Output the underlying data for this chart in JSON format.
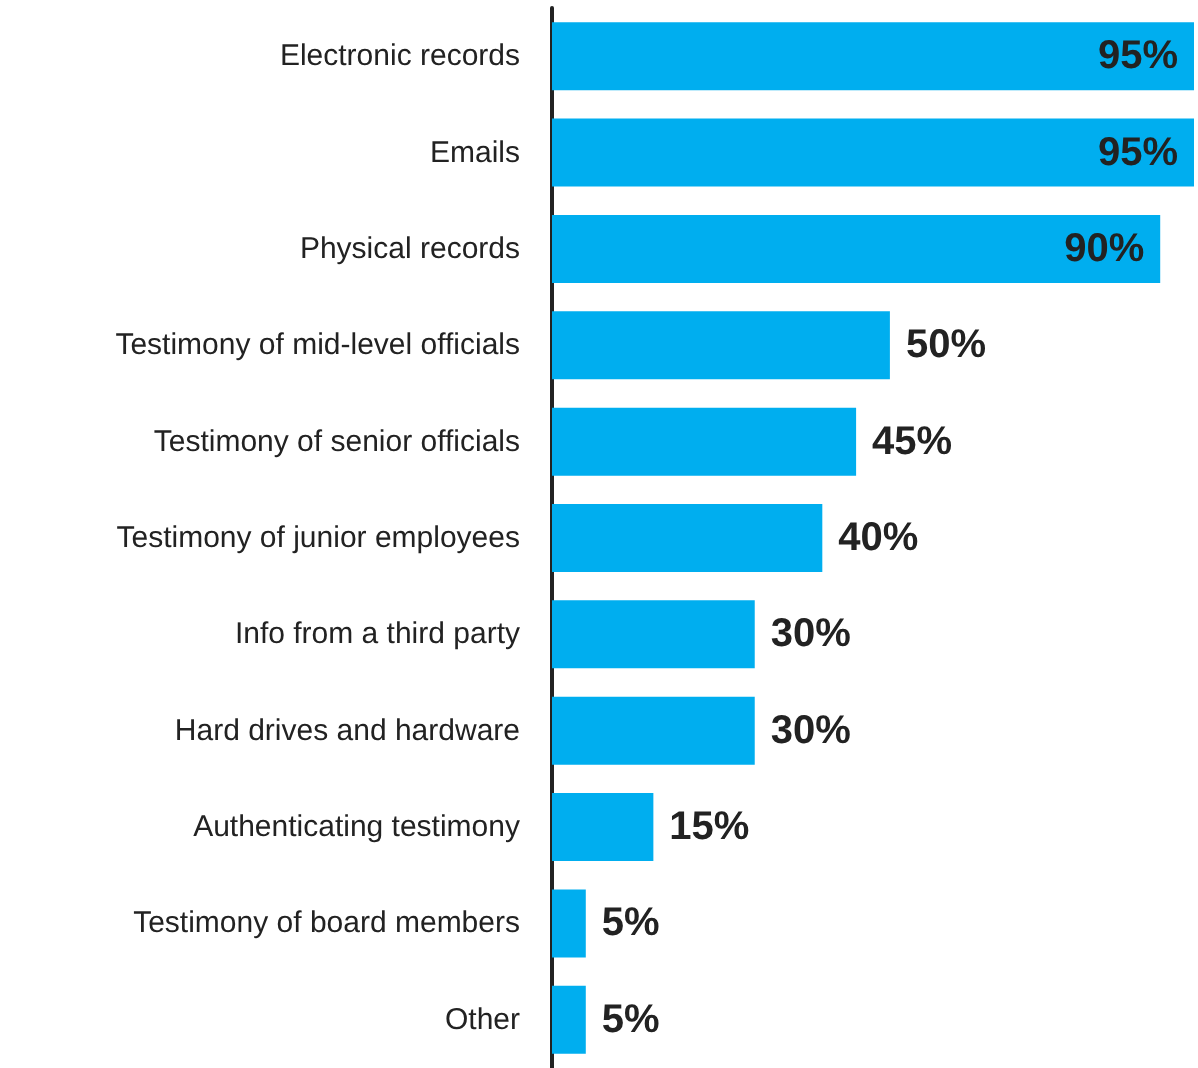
{
  "chart_data": {
    "type": "bar",
    "orientation": "horizontal",
    "categories": [
      "Electronic records",
      "Emails",
      "Physical records",
      "Testimony of mid-level officials",
      "Testimony of senior officials",
      "Testimony of junior employees",
      "Info from a third party",
      "Hard drives and hardware",
      "Authenticating testimony",
      "Testimony of board members",
      "Other"
    ],
    "values": [
      95,
      95,
      90,
      50,
      45,
      40,
      30,
      30,
      15,
      5,
      5
    ],
    "value_labels": [
      "95%",
      "95%",
      "90%",
      "50%",
      "45%",
      "40%",
      "30%",
      "30%",
      "15%",
      "5%",
      "5%"
    ],
    "color": "#00aeef"
  }
}
